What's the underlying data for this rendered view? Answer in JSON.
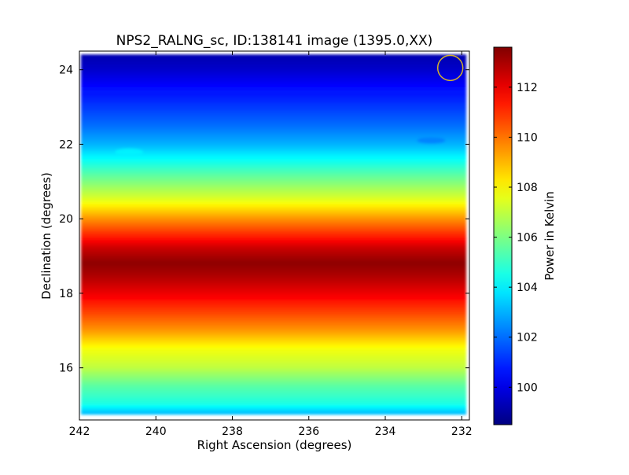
{
  "chart_data": {
    "type": "heatmap",
    "title": "NPS2_RALNG_sc, ID:138141 image (1395.0,XX)",
    "xlabel": "Right Ascension (degrees)",
    "ylabel": "Declination (degrees)",
    "xlim": [
      242.0,
      231.8
    ],
    "ylim": [
      14.6,
      24.5
    ],
    "x_ticks": [
      242,
      240,
      238,
      236,
      234,
      232
    ],
    "y_ticks": [
      16,
      18,
      20,
      22,
      24
    ],
    "colormap": "jet",
    "colorbar": {
      "label": "Power in Kelvin",
      "range": [
        98.5,
        113.6
      ],
      "ticks": [
        100,
        102,
        104,
        106,
        108,
        110,
        112
      ]
    },
    "marker": {
      "shape": "circle",
      "ra": 232.3,
      "dec": 24.05,
      "color": "#d4b22a"
    },
    "dec_profile": {
      "dec": [
        14.8,
        15.0,
        15.5,
        16.0,
        16.5,
        17.0,
        17.5,
        18.0,
        18.4,
        18.8,
        19.2,
        19.6,
        20.0,
        20.5,
        21.0,
        21.5,
        22.0,
        22.5,
        23.0,
        23.5,
        24.0,
        24.4
      ],
      "power": [
        103.3,
        104.5,
        105.5,
        107.0,
        107.8,
        109.5,
        110.8,
        112.0,
        112.8,
        113.4,
        112.5,
        111.0,
        109.5,
        107.5,
        106.0,
        104.5,
        103.0,
        102.0,
        101.2,
        100.5,
        99.6,
        99.2
      ]
    },
    "features": [
      {
        "ra": 240.7,
        "dec": 21.8,
        "power": 104.0
      },
      {
        "ra": 232.8,
        "dec": 22.1,
        "power": 102.3
      }
    ]
  }
}
